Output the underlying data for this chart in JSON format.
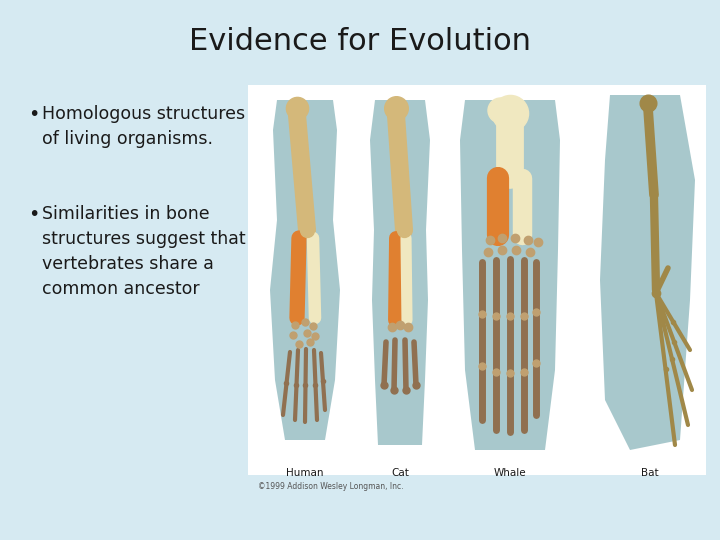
{
  "title": "Evidence for Evolution",
  "title_fontsize": 22,
  "title_color": "#1a1a1a",
  "background_color": "#d6eaf2",
  "bullet_points": [
    "Homologous structures\nof living organisms.",
    "Similarities in bone\nstructures suggest that\nvertebrates share a\ncommon ancestor"
  ],
  "bullet_fontsize": 12.5,
  "bullet_color": "#1a1a1a",
  "labels": [
    "Human",
    "Cat",
    "Whale",
    "Bat"
  ],
  "label_fontsize": 7.5,
  "copyright": "©1999 Addison Wesley Longman, Inc.",
  "blob_color": "#a8c8cc",
  "panel_bg": "#ffffff",
  "humerus_color": "#d4b87a",
  "radius_color": "#e08030",
  "ulna_color": "#f0e8c0",
  "carpal_color": "#c0a070",
  "finger_color": "#907050",
  "bat_bone_color": "#a08848"
}
